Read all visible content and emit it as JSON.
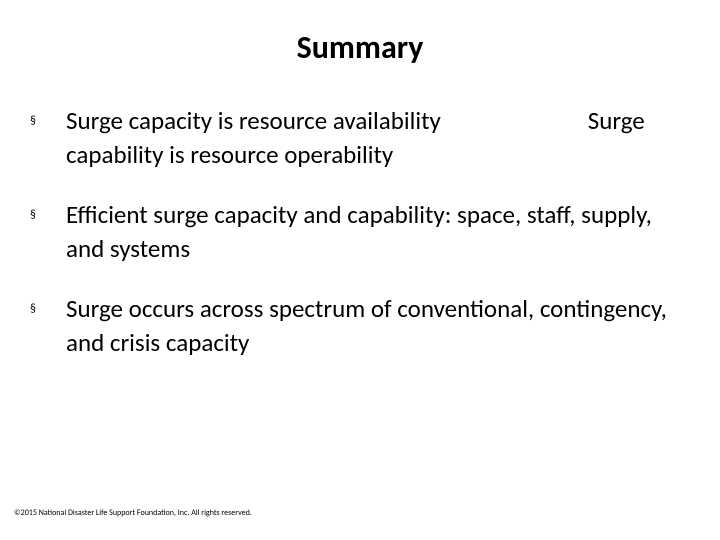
{
  "title": "Summary",
  "bullets": [
    {
      "marker": "§",
      "text": "Surge capacity is resource availability                          Surge capability is resource operability"
    },
    {
      "marker": "§",
      "text": "Efficient surge capacity and capability: space, staff, supply, and systems"
    },
    {
      "marker": "§",
      "text": "Surge occurs across spectrum of conventional, contingency, and crisis capacity"
    }
  ],
  "footer": "©2015 National Disaster Life Support Foundation, Inc. All rights reserved.",
  "style": {
    "background_color": "#ffffff",
    "title_fontsize": 32,
    "title_fontweight": 700,
    "body_fontsize": 25,
    "body_lineheight": 34,
    "footer_fontsize": 8,
    "text_color": "#000000",
    "font_family": "Calibri"
  }
}
